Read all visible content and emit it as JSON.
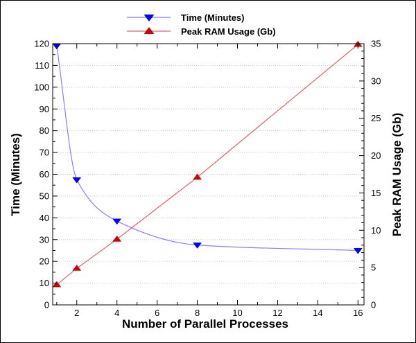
{
  "chart_data": {
    "type": "line",
    "title": "",
    "xlabel": "Number of Parallel Processes",
    "ylabel_left": "Time (Minutes)",
    "ylabel_right": "Peak RAM Usage (Gb)",
    "xlim": [
      0.8,
      16.3
    ],
    "ylim_left": [
      0,
      120
    ],
    "ylim_right": [
      0,
      35
    ],
    "xticks": [
      "2",
      "4",
      "6",
      "8",
      "10",
      "12",
      "14",
      "16"
    ],
    "yticks_left": [
      "0",
      "10",
      "20",
      "30",
      "40",
      "50",
      "60",
      "70",
      "80",
      "90",
      "100",
      "110",
      "120"
    ],
    "yticks_right": [
      "0",
      "5",
      "10",
      "15",
      "20",
      "25",
      "30",
      "35"
    ],
    "grid": "horizontal dotted",
    "legend_position": "top-center",
    "series": [
      {
        "name": "Time (Minutes)",
        "axis": "left",
        "color": "#0000ff",
        "line_color": "#8080ff",
        "marker": "triangle-down",
        "x": [
          1,
          2,
          4,
          8,
          16
        ],
        "y": [
          119,
          57.5,
          38.5,
          27.5,
          25
        ]
      },
      {
        "name": "Peak RAM Usage (Gb)",
        "axis": "right",
        "color": "#d00000",
        "line_color": "#e06060",
        "marker": "triangle-up",
        "x": [
          1,
          2,
          4,
          8,
          16
        ],
        "y": [
          2.7,
          4.9,
          8.8,
          17.1,
          34.9
        ]
      }
    ]
  }
}
